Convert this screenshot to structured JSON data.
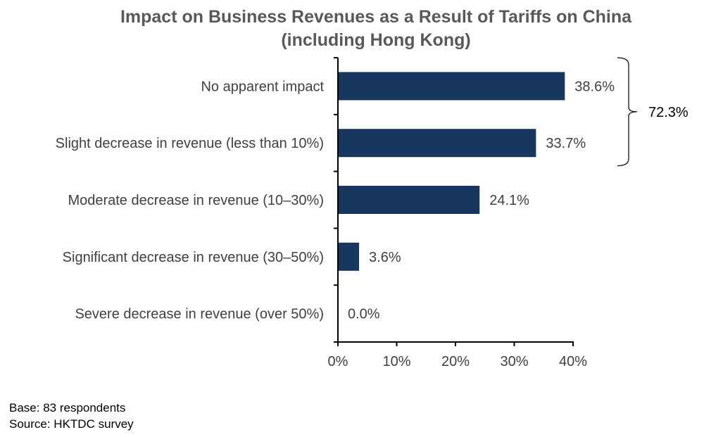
{
  "chart_data": {
    "type": "bar",
    "orientation": "horizontal",
    "title": "Impact on Business Revenues as a Result of Tariffs on China",
    "subtitle": "(including Hong Kong)",
    "categories": [
      "No apparent impact",
      "Slight decrease in revenue (less than 10%)",
      "Moderate decrease in revenue (10–30%)",
      "Significant decrease in revenue (30–50%)",
      "Severe decrease in revenue (over 50%)"
    ],
    "values": [
      38.6,
      33.7,
      24.1,
      3.6,
      0.0
    ],
    "value_labels": [
      "38.6%",
      "33.7%",
      "24.1%",
      "3.6%",
      "0.0%"
    ],
    "xlabel": "",
    "ylabel": "",
    "xlim": [
      0,
      40
    ],
    "x_ticks": [
      0,
      10,
      20,
      30,
      40
    ],
    "x_tick_labels": [
      "0%",
      "10%",
      "20%",
      "30%",
      "40%"
    ],
    "grid": false,
    "legend": null,
    "bar_color": "#17375e",
    "annotations": [
      {
        "type": "bracket",
        "spans_categories": [
          0,
          1
        ],
        "label": "72.3%"
      }
    ]
  },
  "footnotes": {
    "base": "Base: 83 respondents",
    "source": "Source: HKTDC survey"
  }
}
